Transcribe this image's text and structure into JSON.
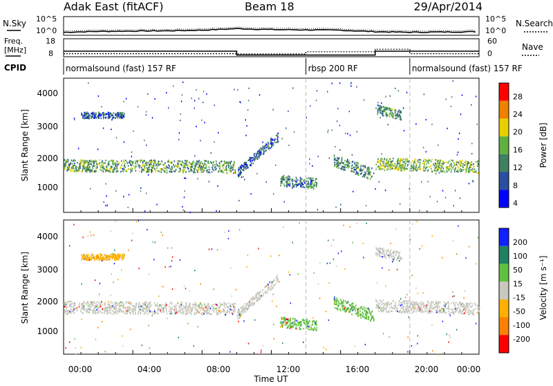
{
  "header": {
    "title": "Adak East (fitACF)",
    "beam": "Beam 18",
    "date": "29/Apr/2014"
  },
  "noise_panel": {
    "left_label": "N.Sky",
    "right_label": "N.Search",
    "left_ticks": [
      "10^5",
      "10^0"
    ],
    "right_ticks": [
      "10^5",
      "10^0"
    ]
  },
  "freq_panel": {
    "left_label_1": "Freq.",
    "left_label_2": "[MHz]",
    "right_label": "Nave",
    "left_ticks": [
      "18",
      "8"
    ],
    "right_ticks": [
      "60",
      "0"
    ]
  },
  "cpid": {
    "label": "CPID",
    "segments": [
      {
        "text": "normalsound (fast) 157 RF",
        "start_hour": 0,
        "end_hour": 14
      },
      {
        "text": "rbsp 200 RF",
        "start_hour": 14,
        "end_hour": 20
      },
      {
        "text": "normalsound (fast) 157 RF",
        "start_hour": 20,
        "end_hour": 24
      }
    ]
  },
  "power_panel": {
    "ylabel": "Slant Range [km]",
    "yticks": [
      "4000",
      "3000",
      "2000",
      "1000"
    ],
    "colorbar_label": "Power [dB]",
    "colorbar_ticks": [
      "28",
      "24",
      "20",
      "16",
      "12",
      "8",
      "4"
    ]
  },
  "velocity_panel": {
    "ylabel": "Slant Range [km]",
    "yticks": [
      "4000",
      "3000",
      "2000",
      "1000"
    ],
    "colorbar_label": "Velocity [m s⁻¹]",
    "colorbar_ticks": [
      "200",
      "100",
      "50",
      "15",
      "-15",
      "-50",
      "-100",
      "-200"
    ]
  },
  "xaxis": {
    "label": "Time UT",
    "ticks": [
      "00:00",
      "04:00",
      "08:00",
      "12:00",
      "16:00",
      "20:00",
      "00:00"
    ]
  },
  "colors": {
    "power_scale": [
      "#0000ff",
      "#2b4fa0",
      "#3f8060",
      "#5fb040",
      "#e8d000",
      "#f08000",
      "#ff0000"
    ],
    "velocity_scale": [
      "#ff0000",
      "#ff8000",
      "#ffb000",
      "#c8c8c0",
      "#60c040",
      "#208060",
      "#1020ff"
    ]
  },
  "chart_data": {
    "type": "heatmap",
    "x_range_hours": [
      0,
      24
    ],
    "y_range_km": [
      180,
      4600
    ],
    "freq_mhz": [
      {
        "start_hour": 0.0,
        "end_hour": 10.0,
        "value": 10.5
      },
      {
        "start_hour": 10.0,
        "end_hour": 18.0,
        "value": 8.2
      },
      {
        "start_hour": 18.0,
        "end_hour": 24.0,
        "value": 10.5
      }
    ],
    "nave": [
      {
        "start_hour": 0.0,
        "end_hour": 10.0,
        "value": 6
      },
      {
        "start_hour": 10.0,
        "end_hour": 14.0,
        "value": 5
      },
      {
        "start_hour": 14.0,
        "end_hour": 18.0,
        "value": 13
      },
      {
        "start_hour": 18.0,
        "end_hour": 20.0,
        "value": 22
      },
      {
        "start_hour": 20.0,
        "end_hour": 24.0,
        "value": 6
      }
    ],
    "noise_sky_log10": [
      {
        "hour": 0.0,
        "value": 0.3
      },
      {
        "hour": 2.0,
        "value": 0.6
      },
      {
        "hour": 4.0,
        "value": 0.7
      },
      {
        "hour": 6.0,
        "value": 0.8
      },
      {
        "hour": 8.0,
        "value": 1.0
      },
      {
        "hour": 10.0,
        "value": 1.5
      },
      {
        "hour": 12.0,
        "value": 1.2
      },
      {
        "hour": 14.0,
        "value": 1.1
      },
      {
        "hour": 16.0,
        "value": 1.0
      },
      {
        "hour": 18.0,
        "value": 0.5
      },
      {
        "hour": 20.0,
        "value": 0.3
      },
      {
        "hour": 22.0,
        "value": 0.4
      },
      {
        "hour": 24.0,
        "value": 0.5
      }
    ],
    "power_echo_regions": [
      {
        "start_hour": 0.0,
        "end_hour": 9.9,
        "range_km_start": 1750,
        "range_km_end": 1700,
        "width_km": 400,
        "power_db": 12
      },
      {
        "start_hour": 10.0,
        "end_hour": 12.4,
        "range_km_start": 1500,
        "range_km_end": 2700,
        "width_km": 300,
        "power_db": 6
      },
      {
        "start_hour": 12.5,
        "end_hour": 14.6,
        "range_km_start": 1250,
        "range_km_end": 1150,
        "width_km": 350,
        "power_db": 8
      },
      {
        "start_hour": 15.6,
        "end_hour": 17.9,
        "range_km_start": 1900,
        "range_km_end": 1450,
        "width_km": 400,
        "power_db": 10
      },
      {
        "start_hour": 18.0,
        "end_hour": 24.0,
        "range_km_start": 1800,
        "range_km_end": 1700,
        "width_km": 400,
        "power_db": 14
      },
      {
        "start_hour": 1.0,
        "end_hour": 3.5,
        "range_km_start": 3400,
        "range_km_end": 3400,
        "width_km": 200,
        "power_db": 6
      },
      {
        "start_hour": 18.0,
        "end_hour": 19.5,
        "range_km_start": 3600,
        "range_km_end": 3400,
        "width_km": 300,
        "power_db": 10
      }
    ],
    "velocity_echo_regions": [
      {
        "start_hour": 0.0,
        "end_hour": 9.9,
        "range_km_start": 1750,
        "range_km_end": 1700,
        "width_km": 400,
        "velocity": 0
      },
      {
        "start_hour": 10.0,
        "end_hour": 12.4,
        "range_km_start": 1500,
        "range_km_end": 2700,
        "width_km": 300,
        "velocity": 0
      },
      {
        "start_hour": 12.5,
        "end_hour": 14.6,
        "range_km_start": 1250,
        "range_km_end": 1150,
        "width_km": 350,
        "velocity": 60
      },
      {
        "start_hour": 15.6,
        "end_hour": 17.9,
        "range_km_start": 1900,
        "range_km_end": 1450,
        "width_km": 400,
        "velocity": 40
      },
      {
        "start_hour": 18.0,
        "end_hour": 24.0,
        "range_km_start": 1800,
        "range_km_end": 1700,
        "width_km": 400,
        "velocity": 0
      },
      {
        "start_hour": 1.0,
        "end_hour": 3.5,
        "range_km_start": 3400,
        "range_km_end": 3400,
        "width_km": 200,
        "velocity": -30
      },
      {
        "start_hour": 18.0,
        "end_hour": 19.5,
        "range_km_start": 3600,
        "range_km_end": 3400,
        "width_km": 300,
        "velocity": 0
      }
    ]
  }
}
